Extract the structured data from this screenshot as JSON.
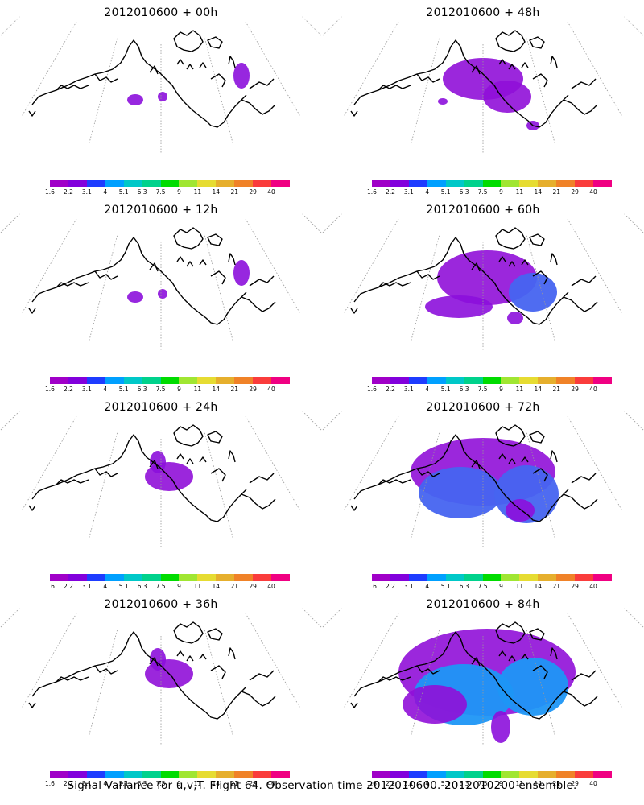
{
  "legend": {
    "colors": [
      "#a000c8",
      "#8200dc",
      "#1e3cff",
      "#00a0ff",
      "#00c8c8",
      "#00d28c",
      "#00dc00",
      "#a0e632",
      "#e6dc32",
      "#e6af2d",
      "#f08228",
      "#fa3c3c",
      "#f00082"
    ],
    "labels": [
      "1.6",
      "2.2",
      "3.1",
      "4",
      "5.1",
      "6.3",
      "7.5",
      "9",
      "11",
      "14",
      "21",
      "29",
      "40"
    ]
  },
  "panels": [
    {
      "title": "2012010600 + 00h",
      "level": 1
    },
    {
      "title": "2012010600 + 48h",
      "level": 3
    },
    {
      "title": "2012010600 + 12h",
      "level": 1
    },
    {
      "title": "2012010600 + 60h",
      "level": 4
    },
    {
      "title": "2012010600 + 24h",
      "level": 2
    },
    {
      "title": "2012010600 + 72h",
      "level": 5
    },
    {
      "title": "2012010600 + 36h",
      "level": 2
    },
    {
      "title": "2012010600 + 84h",
      "level": 6
    }
  ],
  "footer": "Signal Variance for u,v,T. Flight 64. Observation time 2012010600. 2012010200 ensemble."
}
